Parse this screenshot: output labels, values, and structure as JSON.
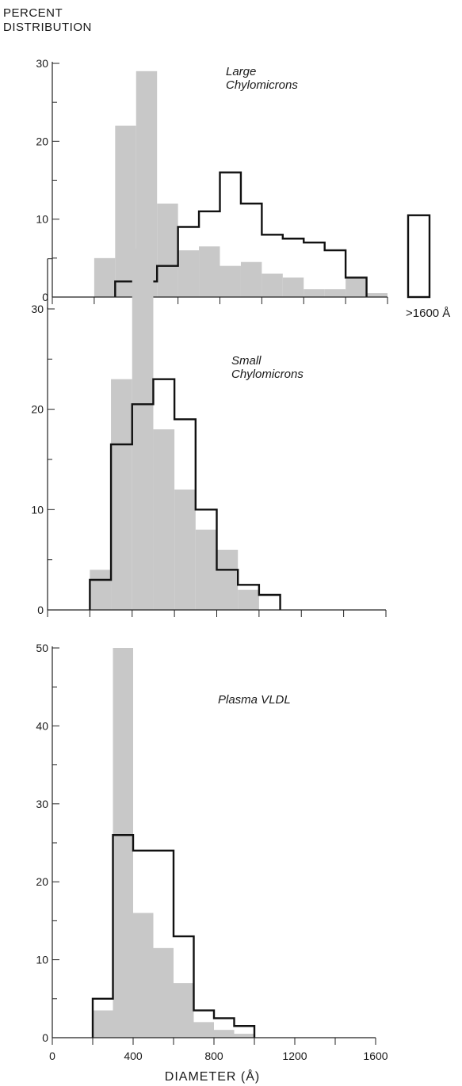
{
  "y_axis_title_line1": "PERCENT",
  "y_axis_title_line2": "DISTRIBUTION",
  "x_axis_title": "DIAMETER (Å)",
  "inset_label": ">1600 Å",
  "colors": {
    "shaded": "#c8c8c8",
    "outline": "#111111",
    "axis": "#222222"
  },
  "chart_data": [
    {
      "type": "bar",
      "title": "Large Chylomicrons",
      "xlabel": "",
      "ylabel": "PERCENT DISTRIBUTION",
      "xlim": [
        0,
        1600
      ],
      "ylim": [
        0,
        30
      ],
      "yticks": [
        0,
        10,
        20,
        30
      ],
      "bin_edges": [
        0,
        100,
        200,
        300,
        400,
        500,
        600,
        700,
        800,
        900,
        1000,
        1100,
        1200,
        1300,
        1400,
        1500,
        1600
      ],
      "series": [
        {
          "style": "shaded",
          "values": [
            0,
            0,
            5,
            22,
            29,
            12,
            6,
            6.5,
            4,
            4.5,
            3,
            2.5,
            1,
            1,
            2.5,
            0.5
          ]
        },
        {
          "style": "outline",
          "values": [
            0,
            0,
            0,
            2,
            2,
            4,
            9,
            11,
            16,
            12,
            8,
            7.5,
            7,
            6,
            2.5,
            0
          ]
        }
      ],
      "inset_bar": {
        "label": ">1600 Å",
        "value": 10.5
      }
    },
    {
      "type": "bar",
      "title": "Small Chylomicrons",
      "xlabel": "",
      "ylabel": "",
      "xlim": [
        0,
        1600
      ],
      "ylim": [
        0,
        35
      ],
      "yticks": [
        0,
        10,
        20,
        30
      ],
      "bin_edges": [
        0,
        100,
        200,
        300,
        400,
        500,
        600,
        700,
        800,
        900,
        1000,
        1100,
        1200,
        1300,
        1400,
        1500,
        1600
      ],
      "series": [
        {
          "style": "shaded",
          "values": [
            0,
            0,
            4,
            23,
            36,
            18,
            12,
            8,
            6,
            2,
            0,
            0,
            0,
            0,
            0,
            0
          ]
        },
        {
          "style": "outline",
          "values": [
            0,
            0,
            3,
            16.5,
            20.5,
            23,
            19,
            10,
            4,
            2.5,
            1.5,
            0,
            0,
            0,
            0,
            0
          ]
        }
      ]
    },
    {
      "type": "bar",
      "title": "Plasma VLDL",
      "xlabel": "DIAMETER (Å)",
      "ylabel": "",
      "xlim": [
        0,
        1600
      ],
      "ylim": [
        0,
        50
      ],
      "xticks": [
        0,
        400,
        800,
        1200,
        1600
      ],
      "yticks": [
        0,
        10,
        20,
        30,
        40,
        50
      ],
      "bin_edges": [
        0,
        100,
        200,
        300,
        400,
        500,
        600,
        700,
        800,
        900,
        1000,
        1100,
        1200,
        1300,
        1400,
        1500,
        1600
      ],
      "series": [
        {
          "style": "shaded",
          "values": [
            0,
            0,
            3.5,
            50,
            16,
            11.5,
            7,
            2,
            1,
            0.5,
            0,
            0,
            0,
            0,
            0,
            0
          ]
        },
        {
          "style": "outline",
          "values": [
            0,
            0,
            5,
            26,
            24,
            24,
            13,
            3.5,
            2.5,
            1.5,
            0,
            0,
            0,
            0,
            0,
            0
          ]
        }
      ]
    }
  ]
}
